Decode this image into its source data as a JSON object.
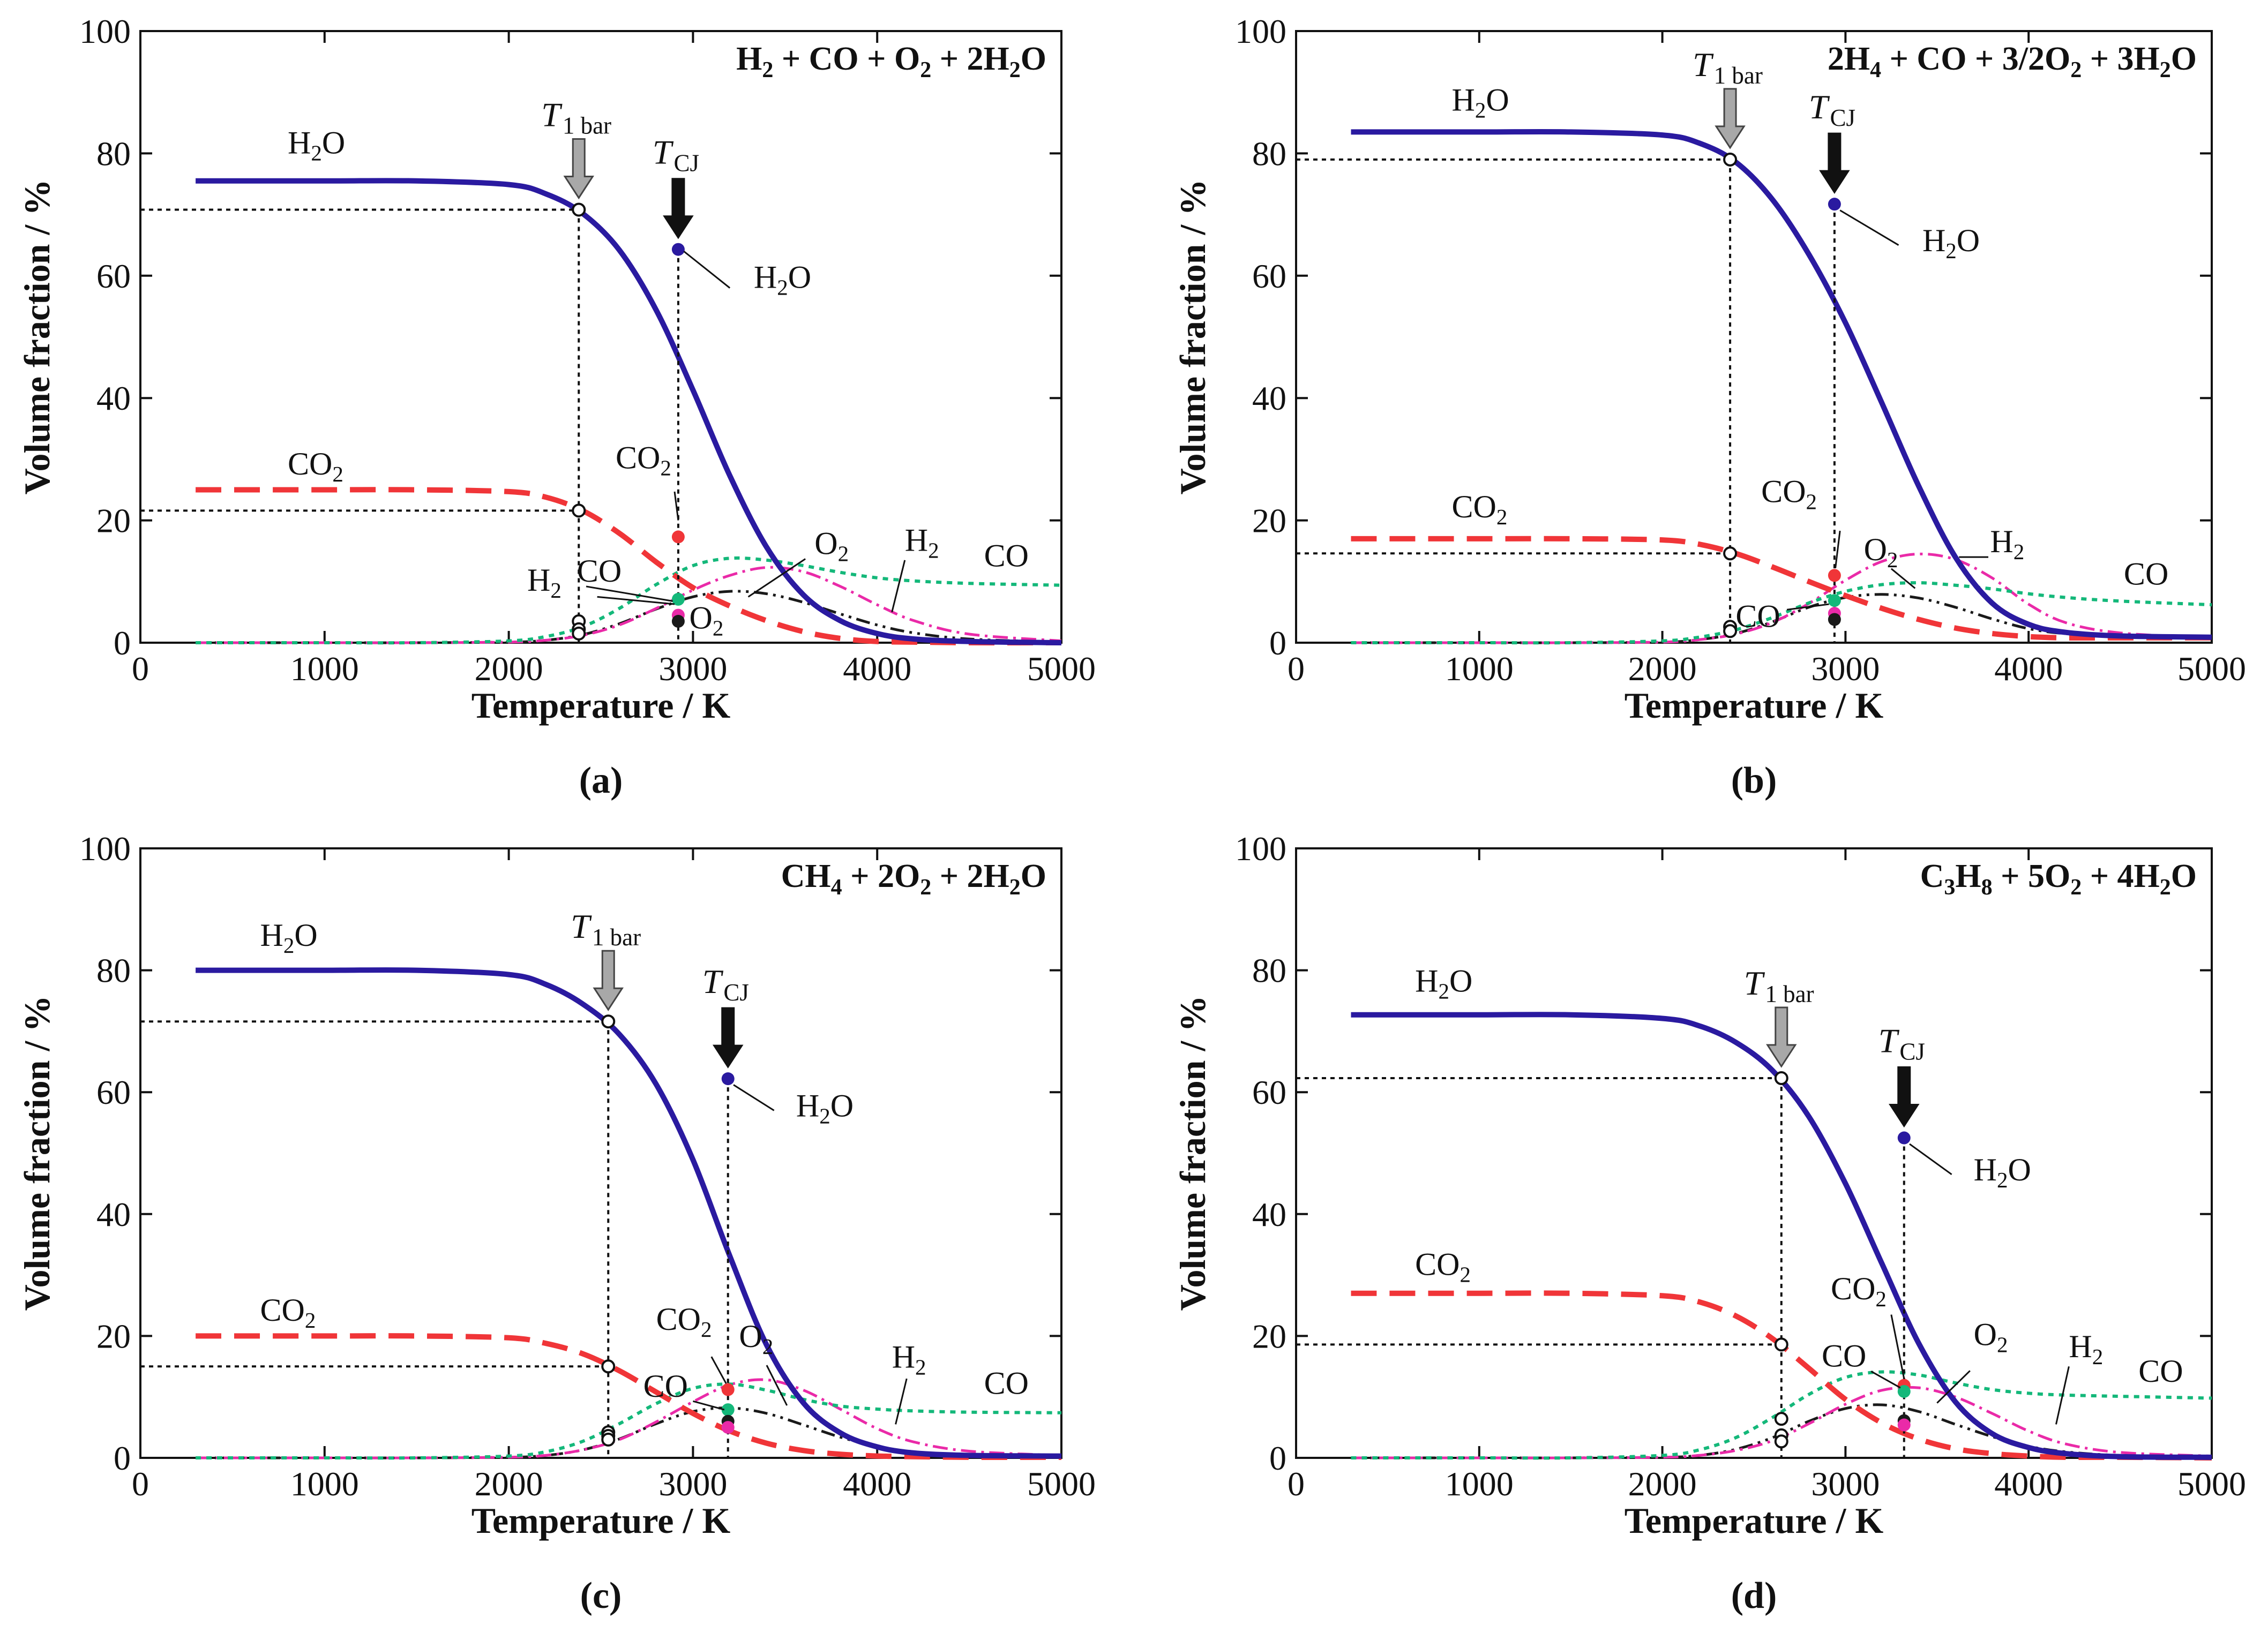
{
  "colors": {
    "H2O": "#2a1aa0",
    "CO2": "#f03538",
    "CO": "#14b87a",
    "H2": "#ea2aa8",
    "O2": "#1a1a1a",
    "arrow_1bar": "#a8a8a8",
    "arrow_cj": "#111111",
    "axis": "#111111"
  },
  "chart_data": [
    {
      "panel": "(a)",
      "type": "line",
      "title": "H₂ + CO + O₂ + 2H₂O",
      "xlabel": "Temperature / K",
      "ylabel": "Volume fraction / %",
      "xlim": [
        0,
        5000
      ],
      "ylim": [
        0,
        100
      ],
      "xticks": [
        "0",
        "1000",
        "2000",
        "3000",
        "4000",
        "5000"
      ],
      "yticks": [
        "0",
        "20",
        "40",
        "60",
        "80",
        "100"
      ],
      "x": [
        300,
        1000,
        1500,
        2000,
        2200,
        2400,
        2600,
        2800,
        3000,
        3200,
        3400,
        3600,
        3800,
        4000,
        4200,
        4500,
        5000
      ],
      "series": [
        {
          "name": "H₂O",
          "style": "solid",
          "values": [
            75.5,
            75.5,
            75.5,
            74.9,
            73.4,
            70.2,
            64.2,
            54.4,
            41.3,
            27.3,
            15.6,
            7.8,
            3.6,
            1.5,
            0.6,
            0.2,
            0.0
          ]
        },
        {
          "name": "CO₂",
          "style": "dashed",
          "values": [
            25.0,
            25.0,
            25.0,
            24.7,
            23.8,
            21.6,
            17.9,
            13.2,
            9.0,
            6.0,
            3.6,
            1.8,
            0.7,
            0.2,
            0.1,
            0.0,
            0.0
          ]
        },
        {
          "name": "CO",
          "style": "dotted",
          "values": [
            0.0,
            0.0,
            0.0,
            0.3,
            1.0,
            2.6,
            5.6,
            9.5,
            12.6,
            13.8,
            13.5,
            12.6,
            11.5,
            10.6,
            10.1,
            9.7,
            9.4
          ]
        },
        {
          "name": "H₂",
          "style": "dash-dot",
          "values": [
            0.0,
            0.0,
            0.0,
            0.1,
            0.4,
            1.2,
            2.9,
            5.6,
            8.6,
            11.0,
            12.3,
            11.6,
            9.2,
            6.2,
            3.6,
            1.4,
            0.3
          ]
        },
        {
          "name": "O₂",
          "style": "dash-dot-dot",
          "values": [
            0.0,
            0.0,
            0.0,
            0.1,
            0.4,
            1.3,
            3.1,
            5.5,
            7.5,
            8.4,
            8.0,
            6.6,
            4.7,
            2.9,
            1.6,
            0.6,
            0.1
          ]
        }
      ],
      "T_1bar": 2380,
      "T_CJ": 2920,
      "points_1bar": [
        {
          "species": "H₂O",
          "value": 70.8
        },
        {
          "species": "CO₂",
          "value": 21.6
        },
        {
          "species": "H₂",
          "value": 3.5
        },
        {
          "species": "CO",
          "value": 2.2
        },
        {
          "species": "O₂",
          "value": 1.5
        }
      ],
      "points_cj": [
        {
          "species": "H₂O",
          "value": 64.3
        },
        {
          "species": "CO₂",
          "value": 17.3
        },
        {
          "species": "CO",
          "value": 7.1
        },
        {
          "species": "H₂",
          "value": 4.5
        },
        {
          "species": "O₂",
          "value": 3.5
        }
      ],
      "labels": {
        "T_1bar": "T",
        "T_1bar_sub": "1 bar",
        "T_CJ": "T",
        "T_CJ_sub": "CJ",
        "H2O_curve": "H₂O",
        "CO2_curve": "CO₂",
        "H2O_cj": "H₂O",
        "CO2_cj": "CO₂",
        "H2": "H₂",
        "CO": "CO",
        "O2": "O₂",
        "O2_low": "O₂",
        "H2_right": "H₂",
        "CO_right": "CO"
      }
    },
    {
      "panel": "(b)",
      "type": "line",
      "title": "2H₄ + CO + 3/2O₂ + 3H₂O",
      "xlabel": "Temperature / K",
      "ylabel": "Volume fraction / %",
      "xlim": [
        0,
        5000
      ],
      "ylim": [
        0,
        100
      ],
      "xticks": [
        "0",
        "1000",
        "2000",
        "3000",
        "4000",
        "5000"
      ],
      "yticks": [
        "0",
        "20",
        "40",
        "60",
        "80",
        "100"
      ],
      "x": [
        300,
        1000,
        1500,
        2000,
        2200,
        2400,
        2600,
        2800,
        3000,
        3200,
        3400,
        3600,
        3800,
        4000,
        4200,
        4500,
        5000
      ],
      "series": [
        {
          "name": "H₂O",
          "style": "solid",
          "values": [
            83.5,
            83.5,
            83.5,
            83.0,
            81.7,
            78.6,
            72.5,
            63.5,
            52.3,
            39.1,
            25.6,
            14.0,
            6.5,
            3.0,
            1.7,
            1.1,
            0.9
          ]
        },
        {
          "name": "CO₂",
          "style": "dashed",
          "values": [
            17.0,
            17.0,
            17.0,
            16.8,
            16.1,
            14.6,
            12.4,
            10.0,
            7.7,
            5.6,
            3.8,
            2.4,
            1.5,
            1.0,
            0.8,
            0.8,
            0.8
          ]
        },
        {
          "name": "CO",
          "style": "dotted",
          "values": [
            0.0,
            0.0,
            0.0,
            0.3,
            0.9,
            2.1,
            4.1,
            6.5,
            8.4,
            9.5,
            9.8,
            9.4,
            8.8,
            8.0,
            7.4,
            6.8,
            6.2
          ]
        },
        {
          "name": "H₂",
          "style": "dash-dot",
          "values": [
            0.0,
            0.0,
            0.0,
            0.1,
            0.5,
            1.4,
            3.3,
            6.4,
            10.2,
            13.3,
            14.5,
            13.6,
            10.6,
            6.3,
            3.3,
            1.6,
            0.8
          ]
        },
        {
          "name": "O₂",
          "style": "dash-dot-dot",
          "values": [
            0.0,
            0.0,
            0.0,
            0.1,
            0.5,
            1.5,
            3.4,
            5.8,
            7.4,
            7.9,
            7.3,
            5.8,
            3.9,
            2.3,
            1.5,
            1.2,
            1.0
          ]
        }
      ],
      "T_1bar": 2370,
      "T_CJ": 2940,
      "points_1bar": [
        {
          "species": "H₂O",
          "value": 79.0
        },
        {
          "species": "CO₂",
          "value": 14.6
        },
        {
          "species": "CO",
          "value": 2.6
        },
        {
          "species": "O₂",
          "value": 1.9
        }
      ],
      "points_cj": [
        {
          "species": "H₂O",
          "value": 71.7
        },
        {
          "species": "CO₂",
          "value": 11.0
        },
        {
          "species": "CO",
          "value": 6.9
        },
        {
          "species": "H₂",
          "value": 4.8
        },
        {
          "species": "O₂",
          "value": 3.8
        }
      ],
      "labels": {
        "T_1bar": "T",
        "T_1bar_sub": "1 bar",
        "T_CJ": "T",
        "T_CJ_sub": "CJ",
        "H2O_curve": "H₂O",
        "CO2_curve": "CO₂",
        "H2O_cj": "H₂O",
        "CO2_cj": "CO₂",
        "CO_mid": "CO",
        "O2": "O₂",
        "H2": "H₂",
        "CO_right": "CO"
      }
    },
    {
      "panel": "(c)",
      "type": "line",
      "title": "CH₄ + 2O₂ + 2H₂O",
      "xlabel": "Temperature / K",
      "ylabel": "Volume fraction / %",
      "xlim": [
        0,
        5000
      ],
      "ylim": [
        0,
        100
      ],
      "xticks": [
        "0",
        "1000",
        "2000",
        "3000",
        "4000",
        "5000"
      ],
      "yticks": [
        "0",
        "20",
        "40",
        "60",
        "80",
        "100"
      ],
      "x": [
        300,
        1000,
        1500,
        2000,
        2200,
        2400,
        2600,
        2800,
        3000,
        3200,
        3400,
        3600,
        3800,
        4000,
        4200,
        4500,
        5000
      ],
      "series": [
        {
          "name": "H₂O",
          "style": "solid",
          "values": [
            80.0,
            80.0,
            80.0,
            79.3,
            77.7,
            74.5,
            69.5,
            61.3,
            48.9,
            33.1,
            18.5,
            9.0,
            4.1,
            1.8,
            0.8,
            0.4,
            0.3
          ]
        },
        {
          "name": "CO₂",
          "style": "dashed",
          "values": [
            20.0,
            20.0,
            20.0,
            19.7,
            18.8,
            17.1,
            14.3,
            10.8,
            7.3,
            4.4,
            2.4,
            1.2,
            0.6,
            0.3,
            0.2,
            0.1,
            0.1
          ]
        },
        {
          "name": "CO",
          "style": "dotted",
          "values": [
            0.0,
            0.0,
            0.0,
            0.3,
            1.0,
            2.7,
            5.6,
            8.9,
            11.4,
            12.1,
            11.1,
            9.6,
            8.5,
            8.0,
            7.7,
            7.5,
            7.4
          ]
        },
        {
          "name": "H₂",
          "style": "dash-dot",
          "values": [
            0.0,
            0.0,
            0.0,
            0.1,
            0.4,
            1.3,
            3.0,
            5.9,
            9.2,
            12.0,
            12.8,
            11.1,
            8.0,
            4.8,
            2.6,
            1.1,
            0.4
          ]
        },
        {
          "name": "O₂",
          "style": "dash-dot-dot",
          "values": [
            0.0,
            0.0,
            0.0,
            0.1,
            0.4,
            1.3,
            3.1,
            5.6,
            7.6,
            8.2,
            7.3,
            5.4,
            3.4,
            1.9,
            1.0,
            0.4,
            0.2
          ]
        }
      ],
      "T_1bar": 2540,
      "T_CJ": 3190,
      "points_1bar": [
        {
          "species": "H₂O",
          "value": 71.6
        },
        {
          "species": "CO₂",
          "value": 15.0
        },
        {
          "species": "H₂",
          "value": 4.2
        },
        {
          "species": "CO",
          "value": 3.6
        },
        {
          "species": "O₂",
          "value": 3.0
        }
      ],
      "points_cj": [
        {
          "species": "H₂O",
          "value": 62.2
        },
        {
          "species": "CO₂",
          "value": 11.2
        },
        {
          "species": "CO",
          "value": 7.9
        },
        {
          "species": "O₂",
          "value": 6.0
        },
        {
          "species": "H₂",
          "value": 5.0
        }
      ],
      "labels": {
        "T_1bar": "T",
        "T_1bar_sub": "1 bar",
        "T_CJ": "T",
        "T_CJ_sub": "CJ",
        "H2O_curve": "H₂O",
        "CO2_curve": "CO₂",
        "H2O_cj": "H₂O",
        "CO2_cj": "CO₂",
        "CO_mid": "CO",
        "O2": "O₂",
        "H2": "H₂",
        "CO_right": "CO"
      }
    },
    {
      "panel": "(d)",
      "type": "line",
      "title": "C₃H₈ + 5O₂ + 4H₂O",
      "xlabel": "Temperature / K",
      "ylabel": "Volume fraction / %",
      "xlim": [
        0,
        5000
      ],
      "ylim": [
        0,
        100
      ],
      "xticks": [
        "0",
        "1000",
        "2000",
        "3000",
        "4000",
        "5000"
      ],
      "yticks": [
        "0",
        "20",
        "40",
        "60",
        "80",
        "100"
      ],
      "x": [
        300,
        1000,
        1500,
        2000,
        2200,
        2400,
        2600,
        2800,
        3000,
        3200,
        3400,
        3600,
        3800,
        4000,
        4200,
        4500,
        5000
      ],
      "series": [
        {
          "name": "H₂O",
          "style": "solid",
          "values": [
            72.7,
            72.7,
            72.7,
            72.1,
            70.9,
            68.2,
            63.6,
            56.0,
            45.0,
            31.8,
            18.8,
            9.2,
            4.0,
            1.7,
            0.7,
            0.2,
            0.1
          ]
        },
        {
          "name": "CO₂",
          "style": "dashed",
          "values": [
            27.0,
            27.0,
            27.0,
            26.6,
            25.6,
            23.3,
            19.6,
            14.7,
            9.6,
            5.7,
            3.1,
            1.5,
            0.7,
            0.3,
            0.1,
            0.1,
            0.0
          ]
        },
        {
          "name": "CO",
          "style": "dotted",
          "values": [
            0.0,
            0.0,
            0.0,
            0.4,
            1.3,
            3.3,
            6.6,
            10.4,
            13.2,
            14.1,
            13.6,
            12.3,
            11.2,
            10.6,
            10.3,
            10.1,
            9.8
          ]
        },
        {
          "name": "H₂",
          "style": "dash-dot",
          "values": [
            0.0,
            0.0,
            0.0,
            0.1,
            0.4,
            1.2,
            2.8,
            5.6,
            8.8,
            11.1,
            11.5,
            10.0,
            7.3,
            4.4,
            2.3,
            0.9,
            0.3
          ]
        },
        {
          "name": "O₂",
          "style": "dash-dot-dot",
          "values": [
            0.0,
            0.0,
            0.0,
            0.1,
            0.4,
            1.4,
            3.3,
            6.0,
            8.1,
            8.7,
            7.6,
            5.5,
            3.5,
            1.9,
            1.0,
            0.4,
            0.1
          ]
        }
      ],
      "T_1bar": 2650,
      "T_CJ": 3320,
      "points_1bar": [
        {
          "species": "H₂O",
          "value": 62.3
        },
        {
          "species": "CO₂",
          "value": 18.6
        },
        {
          "species": "CO",
          "value": 6.4
        },
        {
          "species": "H₂",
          "value": 3.7
        },
        {
          "species": "O₂",
          "value": 2.7
        }
      ],
      "points_cj": [
        {
          "species": "H₂O",
          "value": 52.5
        },
        {
          "species": "CO₂",
          "value": 11.9
        },
        {
          "species": "CO",
          "value": 10.9
        },
        {
          "species": "O₂",
          "value": 6.1
        },
        {
          "species": "H₂",
          "value": 5.4
        }
      ],
      "labels": {
        "T_1bar": "T",
        "T_1bar_sub": "1 bar",
        "T_CJ": "T",
        "T_CJ_sub": "CJ",
        "H2O_curve": "H₂O",
        "CO2_curve": "CO₂",
        "H2O_cj": "H₂O",
        "CO2_cj": "CO₂",
        "CO_mid": "CO",
        "O2": "O₂",
        "H2": "H₂",
        "CO_right": "CO"
      }
    }
  ]
}
